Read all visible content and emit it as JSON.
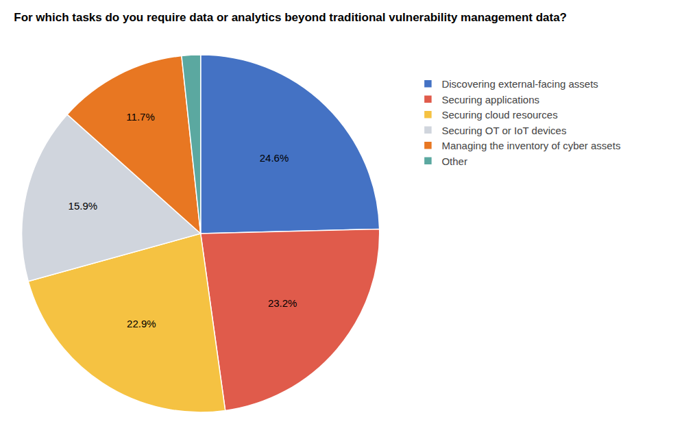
{
  "chart_data": {
    "type": "pie",
    "title": "For which tasks do you require data or analytics beyond traditional vulnerability management data?",
    "categories": [
      "Discovering external-facing assets",
      "Securing applications",
      "Securing cloud resources",
      "Securing OT or IoT devices",
      "Managing the inventory of cyber assets",
      "Other"
    ],
    "values": [
      24.6,
      23.2,
      22.9,
      15.9,
      11.7,
      1.7
    ],
    "value_labels": [
      "24.6%",
      "23.2%",
      "22.9%",
      "15.9%",
      "11.7%",
      null
    ],
    "colors": [
      "#4472C4",
      "#E05B4B",
      "#F5C242",
      "#D0D5DD",
      "#E87722",
      "#5BA8A0"
    ],
    "data_labels": true,
    "legend": "right"
  }
}
